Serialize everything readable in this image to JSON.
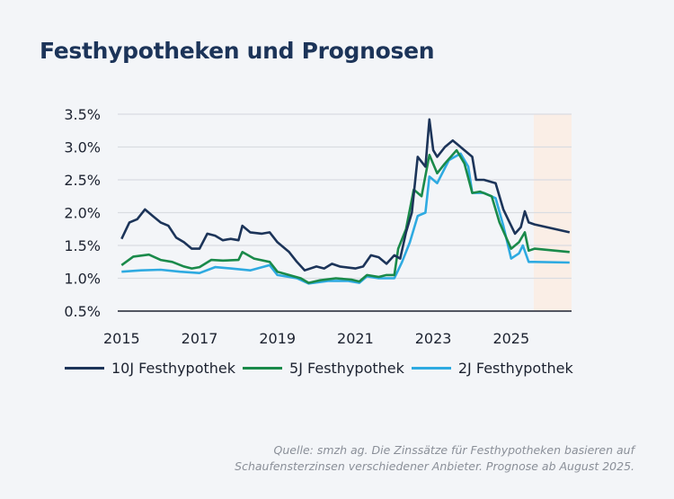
{
  "title": "Festhypotheken und Prognosen",
  "footer": {
    "line1": "Quelle: smzh ag. Die Zinssätze für Festhypotheken basieren auf",
    "line2": "Schaufensterzinsen verschiedener Anbieter. Prognose ab August 2025."
  },
  "chart_data": {
    "type": "line",
    "title": "Festhypotheken und Prognosen",
    "xlabel": "",
    "ylabel": "",
    "xlim": [
      2014.9,
      2026.55
    ],
    "ylim": [
      0.5,
      3.5
    ],
    "xticks": [
      2015,
      2017,
      2019,
      2021,
      2023,
      2025
    ],
    "xtick_labels": [
      "2015",
      "2017",
      "2019",
      "2021",
      "2023",
      "2025"
    ],
    "yticks": [
      0.5,
      1.0,
      1.5,
      2.0,
      2.5,
      3.0,
      3.5
    ],
    "ytick_labels": [
      "0.5%",
      "1.0%",
      "1.5%",
      "2.0%",
      "2.5%",
      "3.0%",
      "3.5%"
    ],
    "grid": "horizontal",
    "legend_position": "bottom",
    "forecast_start": 2025.58,
    "forecast_color": "#faeee6",
    "series": [
      {
        "name": "10J Festhypothek",
        "color": "#1c3459",
        "x": [
          2015.0,
          2015.2,
          2015.4,
          2015.6,
          2015.8,
          2016.0,
          2016.2,
          2016.4,
          2016.6,
          2016.8,
          2017.0,
          2017.2,
          2017.4,
          2017.6,
          2017.8,
          2018.0,
          2018.1,
          2018.3,
          2018.6,
          2018.8,
          2019.0,
          2019.3,
          2019.5,
          2019.7,
          2020.0,
          2020.2,
          2020.4,
          2020.6,
          2021.0,
          2021.2,
          2021.4,
          2021.6,
          2021.8,
          2022.0,
          2022.15,
          2022.3,
          2022.45,
          2022.6,
          2022.8,
          2022.9,
          2023.0,
          2023.1,
          2023.3,
          2023.5,
          2023.8,
          2024.0,
          2024.1,
          2024.3,
          2024.6,
          2024.8,
          2025.0,
          2025.1,
          2025.25,
          2025.35,
          2025.45,
          2025.6,
          2026.5
        ],
        "y": [
          1.6,
          1.85,
          1.9,
          2.05,
          1.95,
          1.85,
          1.8,
          1.62,
          1.55,
          1.45,
          1.45,
          1.68,
          1.65,
          1.58,
          1.6,
          1.58,
          1.8,
          1.7,
          1.68,
          1.7,
          1.55,
          1.4,
          1.25,
          1.12,
          1.18,
          1.15,
          1.22,
          1.18,
          1.15,
          1.18,
          1.35,
          1.32,
          1.22,
          1.35,
          1.3,
          1.7,
          2.0,
          2.85,
          2.7,
          3.42,
          2.95,
          2.85,
          3.0,
          3.1,
          2.95,
          2.85,
          2.5,
          2.5,
          2.45,
          2.05,
          1.8,
          1.68,
          1.78,
          2.02,
          1.85,
          1.82,
          1.7
        ]
      },
      {
        "name": "5J Festhypothek",
        "color": "#1a8a4a",
        "x": [
          2015.0,
          2015.3,
          2015.7,
          2016.0,
          2016.3,
          2016.6,
          2016.8,
          2017.0,
          2017.3,
          2017.6,
          2018.0,
          2018.1,
          2018.4,
          2018.8,
          2019.0,
          2019.3,
          2019.6,
          2019.8,
          2020.1,
          2020.5,
          2020.9,
          2021.1,
          2021.3,
          2021.6,
          2021.8,
          2022.0,
          2022.1,
          2022.3,
          2022.5,
          2022.7,
          2022.9,
          2023.1,
          2023.3,
          2023.6,
          2023.8,
          2024.0,
          2024.2,
          2024.5,
          2024.7,
          2025.0,
          2025.2,
          2025.35,
          2025.45,
          2025.6,
          2026.5
        ],
        "y": [
          1.2,
          1.33,
          1.36,
          1.28,
          1.25,
          1.18,
          1.15,
          1.17,
          1.28,
          1.27,
          1.28,
          1.4,
          1.3,
          1.25,
          1.1,
          1.05,
          1.0,
          0.93,
          0.97,
          1.0,
          0.98,
          0.95,
          1.05,
          1.02,
          1.05,
          1.05,
          1.45,
          1.75,
          2.35,
          2.25,
          2.88,
          2.6,
          2.75,
          2.95,
          2.75,
          2.3,
          2.32,
          2.25,
          1.85,
          1.45,
          1.55,
          1.7,
          1.42,
          1.45,
          1.4
        ]
      },
      {
        "name": "2J Festhypothek",
        "color": "#2eaae1",
        "x": [
          2015.0,
          2015.5,
          2016.0,
          2016.5,
          2017.0,
          2017.4,
          2017.8,
          2018.3,
          2018.8,
          2019.0,
          2019.5,
          2019.8,
          2020.3,
          2020.8,
          2021.1,
          2021.3,
          2021.6,
          2022.0,
          2022.2,
          2022.4,
          2022.6,
          2022.8,
          2022.9,
          2023.1,
          2023.4,
          2023.7,
          2023.9,
          2024.0,
          2024.3,
          2024.6,
          2024.8,
          2025.0,
          2025.2,
          2025.3,
          2025.45,
          2025.6,
          2026.5
        ],
        "y": [
          1.1,
          1.12,
          1.13,
          1.1,
          1.08,
          1.17,
          1.15,
          1.12,
          1.2,
          1.05,
          1.0,
          0.92,
          0.96,
          0.96,
          0.93,
          1.03,
          1.0,
          1.0,
          1.25,
          1.55,
          1.95,
          2.0,
          2.55,
          2.45,
          2.8,
          2.9,
          2.7,
          2.3,
          2.3,
          2.22,
          1.8,
          1.3,
          1.38,
          1.5,
          1.25,
          1.25,
          1.24
        ]
      }
    ]
  }
}
